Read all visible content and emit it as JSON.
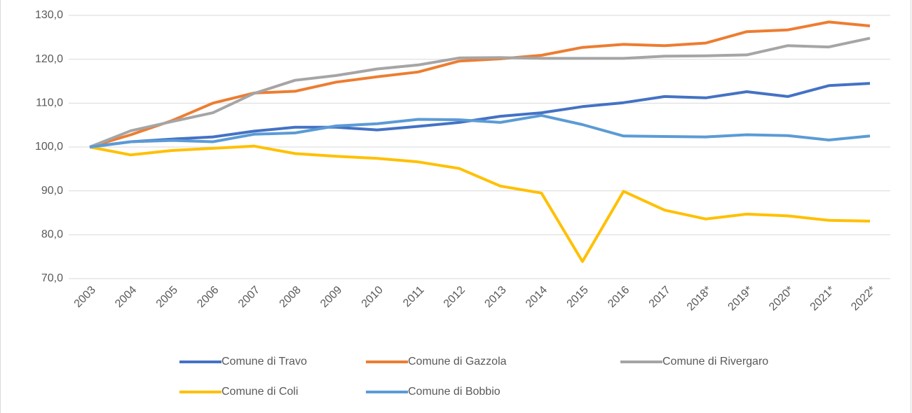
{
  "chart_data": {
    "type": "line",
    "categories": [
      "2003",
      "2004",
      "2005",
      "2006",
      "2007",
      "2008",
      "2009",
      "2010",
      "2011",
      "2012",
      "2013",
      "2014",
      "2015",
      "2016",
      "2017",
      "2018*",
      "2019*",
      "2020*",
      "2021*",
      "2022*"
    ],
    "series": [
      {
        "name": "Comune di Travo",
        "color": "#4472c4",
        "values": [
          100,
          101.2,
          101.8,
          102.3,
          103.6,
          104.5,
          104.5,
          103.9,
          104.7,
          105.6,
          107.0,
          107.8,
          109.2,
          110.1,
          111.5,
          111.2,
          112.6,
          111.5,
          114.0,
          114.5
        ]
      },
      {
        "name": "Comune di Gazzola",
        "color": "#ed7d31",
        "values": [
          100,
          102.8,
          106.0,
          110.0,
          112.3,
          112.7,
          114.8,
          116.0,
          117.1,
          119.6,
          120.1,
          120.9,
          122.7,
          123.4,
          123.1,
          123.7,
          126.3,
          126.7,
          128.5,
          127.6
        ]
      },
      {
        "name": "Comune di Rivergaro",
        "color": "#a5a5a5",
        "values": [
          100,
          103.7,
          105.8,
          107.8,
          112.2,
          115.2,
          116.3,
          117.8,
          118.7,
          120.3,
          120.4,
          120.2,
          120.2,
          120.2,
          120.7,
          120.8,
          121.0,
          123.1,
          122.8,
          124.8
        ]
      },
      {
        "name": "Comune di Coli",
        "color": "#ffc000",
        "values": [
          100,
          98.2,
          99.2,
          99.7,
          100.2,
          98.5,
          97.9,
          97.4,
          96.6,
          95.1,
          91.1,
          89.5,
          73.9,
          89.9,
          85.6,
          83.6,
          84.7,
          84.3,
          83.3,
          83.1
        ]
      },
      {
        "name": "Comune di Bobbio",
        "color": "#5b9bd5",
        "values": [
          100,
          101.2,
          101.5,
          101.2,
          102.9,
          103.2,
          104.8,
          105.3,
          106.3,
          106.2,
          105.6,
          107.2,
          105.1,
          102.5,
          102.4,
          102.3,
          102.8,
          102.6,
          101.6,
          102.5
        ]
      }
    ],
    "ylim": [
      70,
      130
    ],
    "yticks": [
      {
        "value": 70,
        "label": "70,0"
      },
      {
        "value": 80,
        "label": "80,0"
      },
      {
        "value": 90,
        "label": "90,0"
      },
      {
        "value": 100,
        "label": "100,0"
      },
      {
        "value": 110,
        "label": "110,0"
      },
      {
        "value": 120,
        "label": "120,0"
      },
      {
        "value": 130,
        "label": "130,0"
      }
    ],
    "grid": true,
    "legend": "bottom"
  }
}
